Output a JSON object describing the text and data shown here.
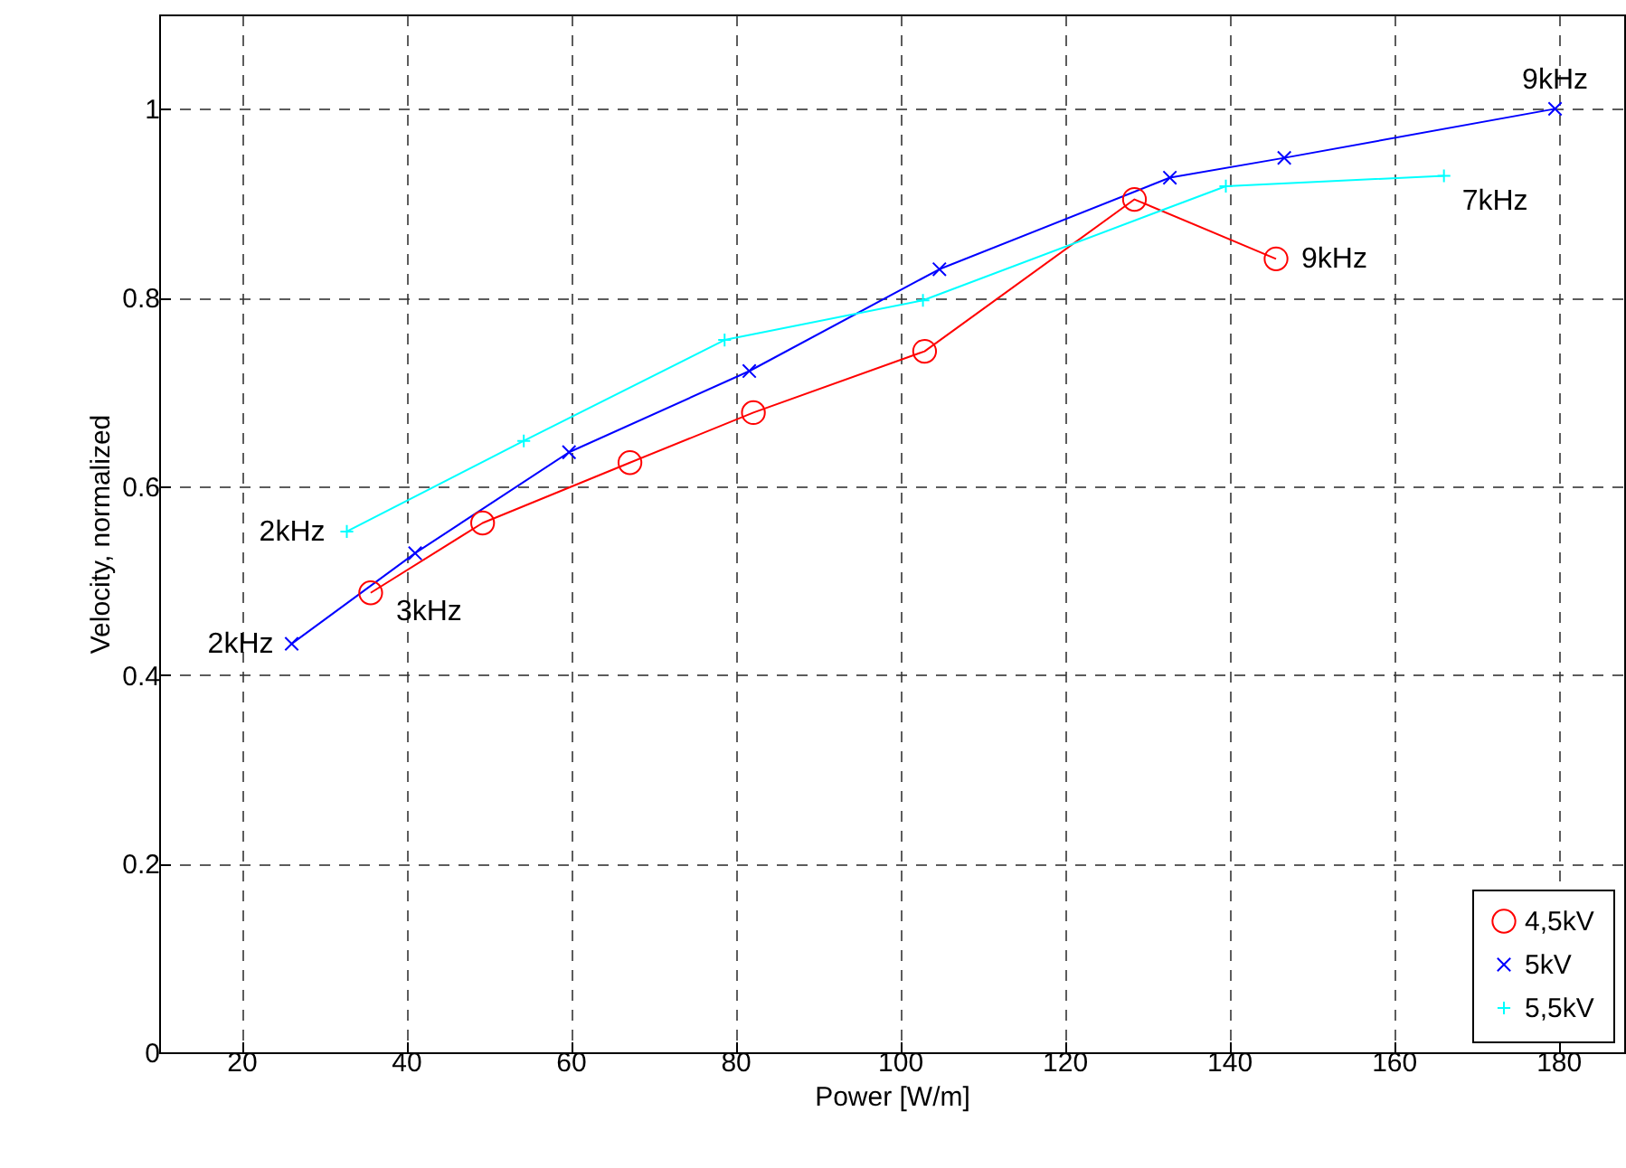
{
  "chart_data": {
    "type": "line",
    "xlabel": "Power [W/m]",
    "ylabel": "Velocity, normalized",
    "xlim": [
      10,
      188
    ],
    "xticks": [
      20,
      40,
      60,
      80,
      100,
      120,
      140,
      160,
      180
    ],
    "ylim": [
      0,
      1.1
    ],
    "yticks": [
      0,
      0.2,
      0.4,
      0.6,
      0.8,
      1
    ],
    "grid": true,
    "legend": "bottom right",
    "series": [
      {
        "name": "4,5kV",
        "color": "#ff0000",
        "marker": "circle",
        "x": [
          35.7,
          49.3,
          67.2,
          82.2,
          103.0,
          128.5,
          145.7
        ],
        "values": [
          0.487,
          0.561,
          0.625,
          0.678,
          0.743,
          0.904,
          0.841
        ]
      },
      {
        "name": "5kV",
        "color": "#0000ff",
        "marker": "x",
        "x": [
          26.1,
          41.1,
          59.8,
          81.7,
          104.8,
          132.8,
          146.7,
          179.6
        ],
        "values": [
          0.433,
          0.529,
          0.636,
          0.722,
          0.83,
          0.927,
          0.948,
          1.0
        ]
      },
      {
        "name": "5,5kV",
        "color": "#00ffff",
        "marker": "cross",
        "x": [
          32.8,
          54.3,
          78.7,
          102.8,
          139.6,
          166.1
        ],
        "values": [
          0.552,
          0.648,
          0.755,
          0.797,
          0.918,
          0.929
        ]
      }
    ],
    "annotations": [
      {
        "text": "2kHz",
        "x": 26.1,
        "y": 0.433
      },
      {
        "text": "2kHz",
        "x": 32.8,
        "y": 0.552
      },
      {
        "text": "3kHz",
        "x": 35.7,
        "y": 0.487
      },
      {
        "text": "9kHz",
        "x": 145.7,
        "y": 0.841
      },
      {
        "text": "7kHz",
        "x": 166.1,
        "y": 0.929
      },
      {
        "text": "9kHz",
        "x": 179.6,
        "y": 1.0
      }
    ]
  }
}
